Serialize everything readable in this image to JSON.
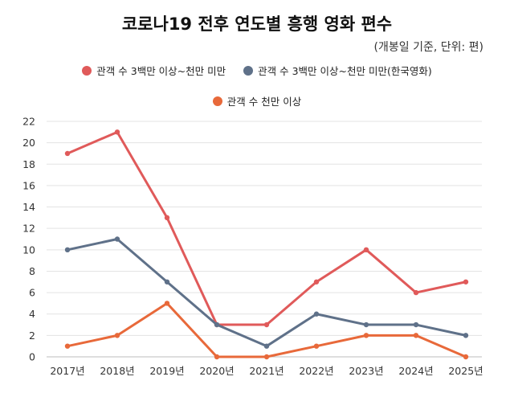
{
  "chart_data": {
    "type": "line",
    "title": "코로나19 전후 연도별 흥행 영화 편수",
    "subtitle": "(개봉일 기준, 단위: 편)",
    "categories": [
      "2017년",
      "2018년",
      "2019년",
      "2020년",
      "2021년",
      "2022년",
      "2023년",
      "2024년",
      "2025년"
    ],
    "ylim": [
      0,
      22
    ],
    "yticks": [
      0,
      2,
      4,
      6,
      8,
      10,
      12,
      14,
      16,
      18,
      20,
      22
    ],
    "grid": true,
    "legend_placement": "top",
    "series": [
      {
        "name": "관객 수 3백만 이상~천만 미만",
        "color": "#e05a5a",
        "values": [
          19,
          21,
          13,
          3,
          3,
          7,
          10,
          6,
          7
        ]
      },
      {
        "name": "관객 수 3백만 이상~천만 미만(한국영화)",
        "color": "#5f7189",
        "values": [
          10,
          11,
          7,
          3,
          1,
          4,
          3,
          3,
          2
        ]
      },
      {
        "name": "관객 수 천만 이상",
        "color": "#e8693a",
        "values": [
          1,
          2,
          5,
          0,
          0,
          1,
          2,
          2,
          0
        ]
      }
    ]
  }
}
